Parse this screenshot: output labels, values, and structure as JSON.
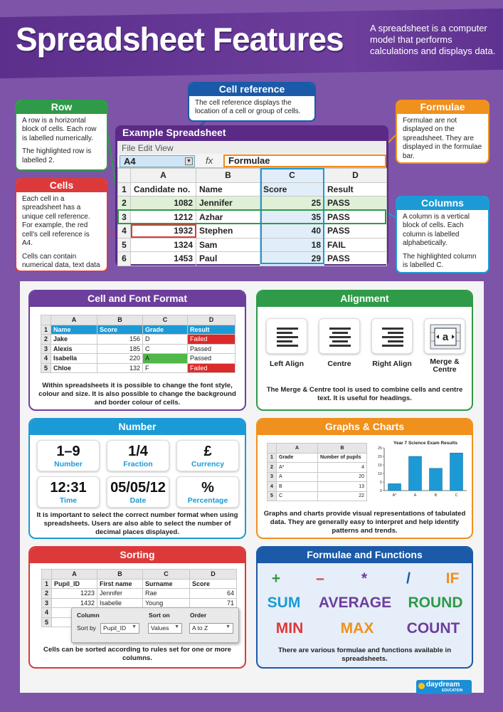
{
  "header": {
    "title": "Spreadsheet Features",
    "intro": "A spreadsheet is a computer model that performs calculations and displays data."
  },
  "colors": {
    "purple": "#6d3e9c",
    "green": "#2f9a48",
    "red": "#dc3a3a",
    "blue": "#1c9ad6",
    "orange": "#f0901d",
    "navy": "#1a5aa8"
  },
  "callouts": {
    "row": {
      "title": "Row",
      "p1": "A row is a horizontal block of cells. Each row is labelled numerically.",
      "p2": "The highlighted row is labelled 2."
    },
    "cells": {
      "title": "Cells",
      "p1": "Each cell in a spreadsheet has a unique cell reference. For example, the red cell's cell reference is A4.",
      "p2": "Cells can contain numerical data, text data or formulae."
    },
    "cell_reference": {
      "title": "Cell reference",
      "p1": "The cell reference displays the location of a cell or group of cells."
    },
    "formulae": {
      "title": "Formulae",
      "p1": "Formulae are not displayed on the spreadsheet. They are displayed in the formulae bar."
    },
    "columns": {
      "title": "Columns",
      "p1": "A column is a vertical block of cells. Each column is labelled alphabetically.",
      "p2": "The highlighted column is labelled C."
    }
  },
  "example": {
    "title": "Example Spreadsheet",
    "menu": [
      "File",
      "Edit",
      "View"
    ],
    "name_box": "A4",
    "fx": "fx",
    "formula": "Formulae",
    "cols": [
      "A",
      "B",
      "C",
      "D"
    ],
    "rows": [
      {
        "n": "1",
        "a": "Candidate no.",
        "b": "Name",
        "c": "Score",
        "d": "Result"
      },
      {
        "n": "2",
        "a": "1082",
        "b": "Jennifer",
        "c": "25",
        "d": "PASS"
      },
      {
        "n": "3",
        "a": "1212",
        "b": "Azhar",
        "c": "35",
        "d": "PASS"
      },
      {
        "n": "4",
        "a": "1932",
        "b": "Stephen",
        "c": "40",
        "d": "PASS"
      },
      {
        "n": "5",
        "a": "1324",
        "b": "Sam",
        "c": "18",
        "d": "FAIL"
      },
      {
        "n": "6",
        "a": "1453",
        "b": "Paul",
        "c": "29",
        "d": "PASS"
      }
    ]
  },
  "cell_font": {
    "title": "Cell and Font Format",
    "cols": [
      "A",
      "B",
      "C",
      "D"
    ],
    "rows": [
      {
        "n": "1",
        "a": "Name",
        "b": "Score",
        "c": "Grade",
        "d": "Result"
      },
      {
        "n": "2",
        "a": "Jake",
        "b": "156",
        "c": "D",
        "d": "Failed"
      },
      {
        "n": "3",
        "a": "Alexis",
        "b": "185",
        "c": "C",
        "d": "Passed"
      },
      {
        "n": "4",
        "a": "Isabella",
        "b": "220",
        "c": "A",
        "d": "Passed"
      },
      {
        "n": "5",
        "a": "Chloe",
        "b": "132",
        "c": "F",
        "d": "Failed"
      }
    ],
    "caption": "Within spreadsheets it is possible to change the font style, colour and size. It is also possible to change the background and border colour of cells."
  },
  "alignment": {
    "title": "Alignment",
    "buttons": [
      {
        "label": "Left Align"
      },
      {
        "label": "Centre"
      },
      {
        "label": "Right Align"
      },
      {
        "label": "Merge & Centre"
      }
    ],
    "merge_glyph": "a",
    "caption": "The Merge & Centre tool is used to combine cells and centre text. It is useful for headings."
  },
  "number": {
    "title": "Number",
    "tiles": [
      {
        "value": "1–9",
        "label": "Number"
      },
      {
        "value": "1/4",
        "label": "Fraction"
      },
      {
        "value": "£",
        "label": "Currency"
      },
      {
        "value": "12:31",
        "label": "Time"
      },
      {
        "value": "05/05/12",
        "label": "Date"
      },
      {
        "value": "%",
        "label": "Percentage"
      }
    ],
    "caption": "It is important to select the correct number format when using spreadsheets. Users are also able to select the number of decimal places displayed."
  },
  "graphs": {
    "title": "Graphs & Charts",
    "cols": [
      "A",
      "B"
    ],
    "rows": [
      {
        "n": "1",
        "a": "Grade",
        "b": "Number of pupils"
      },
      {
        "n": "2",
        "a": "A*",
        "b": "4"
      },
      {
        "n": "3",
        "a": "A",
        "b": "20"
      },
      {
        "n": "4",
        "a": "B",
        "b": "13"
      },
      {
        "n": "5",
        "a": "C",
        "b": "22"
      }
    ],
    "caption": "Graphs and charts provide visual representations of tabulated data. They are generally easy to interpret and help identify patterns and trends."
  },
  "chart_data": {
    "type": "bar",
    "title": "Year 7 Science Exam Results",
    "categories": [
      "A*",
      "A",
      "B",
      "C"
    ],
    "values": [
      4,
      20,
      13,
      22
    ],
    "ylim": [
      0,
      25
    ],
    "yticks": [
      "0",
      "5",
      "10",
      "15",
      "20",
      "25"
    ],
    "xlabel": "",
    "ylabel": "",
    "grid": false,
    "bar_color": "#1c9ad6"
  },
  "sorting": {
    "title": "Sorting",
    "cols": [
      "A",
      "B",
      "C",
      "D"
    ],
    "rows": [
      {
        "n": "1",
        "a": "Pupil_ID",
        "b": "First name",
        "c": "Surname",
        "d": "Score"
      },
      {
        "n": "2",
        "a": "1223",
        "b": "Jennifer",
        "c": "Rae",
        "d": "64"
      },
      {
        "n": "3",
        "a": "1432",
        "b": "Isabelle",
        "c": "Young",
        "d": "71"
      },
      {
        "n": "4",
        "a": "",
        "b": "",
        "c": "",
        "d": ""
      },
      {
        "n": "5",
        "a": "",
        "b": "",
        "c": "",
        "d": ""
      }
    ],
    "dialog": {
      "col_h": "Column",
      "sort_h": "Sort on",
      "order_h": "Order",
      "sort_by": "Sort by",
      "column": "Pupil_ID",
      "sort_on": "Values",
      "order": "A to Z"
    },
    "caption": "Cells can be sorted according to rules set for one or more columns."
  },
  "functions": {
    "title": "Formulae and Functions",
    "ops": [
      "+",
      "–",
      "*",
      "/",
      "IF"
    ],
    "row2": [
      "SUM",
      "AVERAGE",
      "ROUND"
    ],
    "row3": [
      "MIN",
      "MAX",
      "COUNT"
    ],
    "caption": "There are various formulae and functions available in spreadsheets."
  },
  "logo": {
    "text": "daydream",
    "sub": "EDUCATION"
  }
}
